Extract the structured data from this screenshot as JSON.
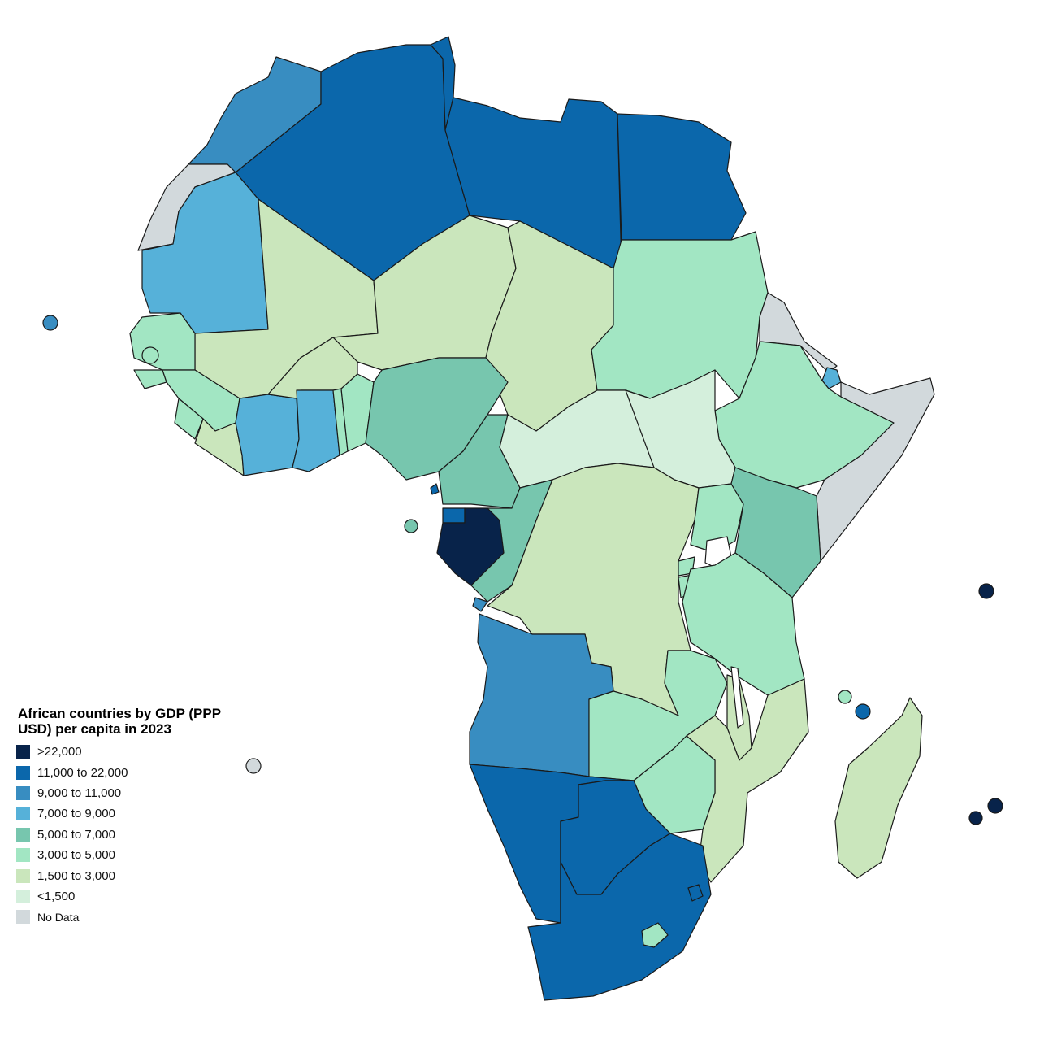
{
  "map": {
    "legend": {
      "title": "African countries by GDP (PPP USD) per capita in 2023",
      "items": [
        {
          "label": ">22,000",
          "color": "#08234a"
        },
        {
          "label": "11,000 to 22,000",
          "color": "#0b67ab"
        },
        {
          "label": "9,000 to 11,000",
          "color": "#388dc1"
        },
        {
          "label": "7,000 to 9,000",
          "color": "#56b1d9"
        },
        {
          "label": "5,000 to 7,000",
          "color": "#77c6ae"
        },
        {
          "label": "3,000 to 5,000",
          "color": "#a2e6c3"
        },
        {
          "label": "1,500 to 3,000",
          "color": "#cae6bc"
        },
        {
          "label": "<1,500",
          "color": "#d4efdc"
        },
        {
          "label": "No Data",
          "color": "#d2d9dc"
        }
      ]
    }
  }
}
